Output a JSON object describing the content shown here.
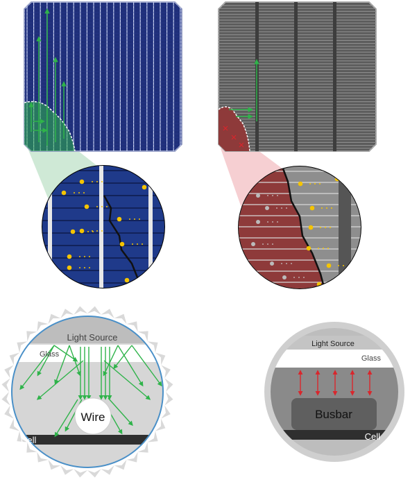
{
  "left_detail": {
    "labels": {
      "light_source": "Light Source",
      "glass": "Glass",
      "wire": "Wire",
      "cell": "Cell"
    }
  },
  "right_detail": {
    "labels": {
      "light_source": "Light Source",
      "glass": "Glass",
      "busbar": "Busbar",
      "cell": "Cell"
    }
  },
  "colors": {
    "cell_blue": "#1f2f7a",
    "cell_gray": "#5b5b5b",
    "conduct_green": "#2fb34a",
    "loss_red": "#8e3a3a",
    "electron_yellow": "#f5c400",
    "reflect_red": "#d9262c",
    "frame_gray": "#cfcfcf"
  },
  "icons": {
    "electron": "electron-dot",
    "current_arrow": "upward-arrow",
    "crack": "crack-line"
  }
}
